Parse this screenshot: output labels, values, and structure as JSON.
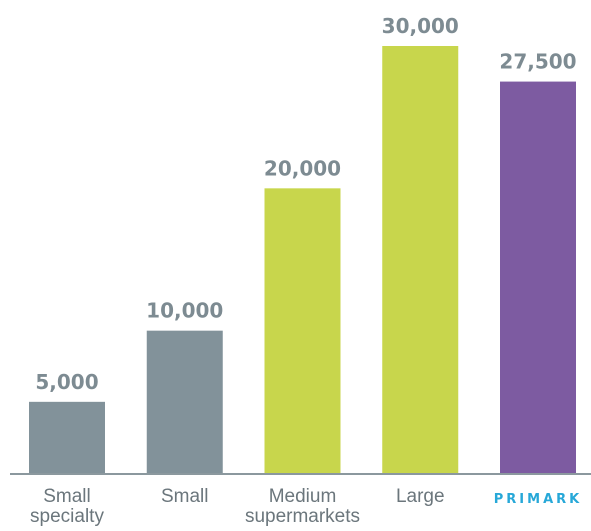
{
  "chart_data": {
    "type": "bar",
    "title": "",
    "xlabel": "",
    "ylabel": "",
    "ylim": [
      0,
      32000
    ],
    "grid": false,
    "legend": "none",
    "categories": [
      {
        "lines": [
          "Small",
          "specialty"
        ]
      },
      {
        "lines": [
          "Small"
        ]
      },
      {
        "lines": [
          "Medium",
          "supermarkets"
        ]
      },
      {
        "lines": [
          "Large"
        ]
      },
      {
        "lines": [
          "PRIMARK"
        ],
        "logo": true
      }
    ],
    "values": [
      5000,
      10000,
      20000,
      30000,
      27500
    ],
    "value_labels": [
      "5,000",
      "10,000",
      "20,000",
      "30,000",
      "27,500"
    ],
    "colors": [
      "#82929a",
      "#82929a",
      "#c8d64c",
      "#c8d64c",
      "#7d5ba1"
    ],
    "axis_color": "#8b989e",
    "category_label_color": "#6b767c",
    "value_label_color": "#7d8b92",
    "logo_color": "#27a8d8"
  }
}
